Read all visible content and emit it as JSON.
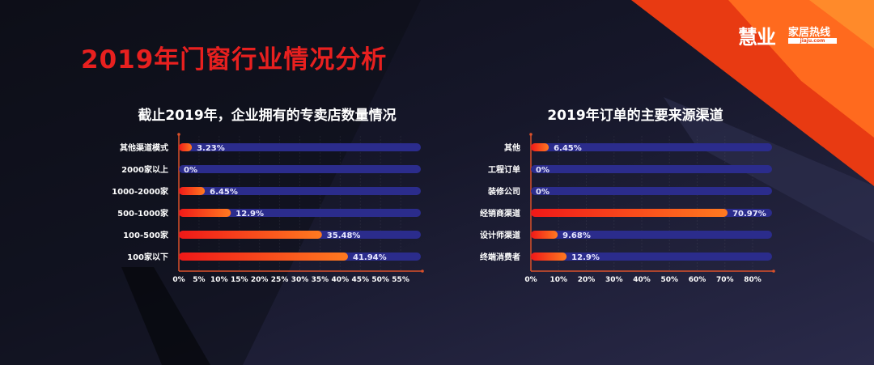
{
  "page_title": "2019年门窗行业情况分析",
  "logo": {
    "brand": "慧业",
    "tagline": "家居热线",
    "url": "jiaju.com"
  },
  "colors": {
    "title": "#e8201f",
    "track": "#2b2c8c",
    "bar_start": "#f01818",
    "bar_end": "#ff7a20",
    "axis": "#d9502a"
  },
  "chart_data": [
    {
      "type": "bar",
      "orientation": "horizontal",
      "title": "截止2019年，企业拥有的专卖店数量情况",
      "categories": [
        "其他渠道模式",
        "2000家以上",
        "1000-2000家",
        "500-1000家",
        "100-500家",
        "100家以下"
      ],
      "values": [
        3.23,
        0,
        6.45,
        12.9,
        35.48,
        41.94
      ],
      "data_labels": [
        "3.23%",
        "0%",
        "6.45%",
        "12.9%",
        "35.48%",
        "41.94%"
      ],
      "xticks": [
        "0%",
        "5%",
        "10%",
        "15%",
        "20%",
        "25%",
        "30%",
        "35%",
        "40%",
        "45%",
        "50%",
        "55%"
      ],
      "xlim": [
        0,
        60
      ],
      "grid": true
    },
    {
      "type": "bar",
      "orientation": "horizontal",
      "title": "2019年订单的主要来源渠道",
      "categories": [
        "其他",
        "工程订单",
        "装修公司",
        "经销商渠道",
        "设计师渠道",
        "终端消费者"
      ],
      "values": [
        6.45,
        0,
        0,
        70.97,
        9.68,
        12.9
      ],
      "data_labels": [
        "6.45%",
        "0%",
        "0%",
        "70.97%",
        "9.68%",
        "12.9%"
      ],
      "xticks": [
        "0%",
        "10%",
        "20%",
        "30%",
        "40%",
        "50%",
        "60%",
        "70%",
        "80%"
      ],
      "xlim": [
        0,
        87
      ],
      "grid": true
    }
  ]
}
